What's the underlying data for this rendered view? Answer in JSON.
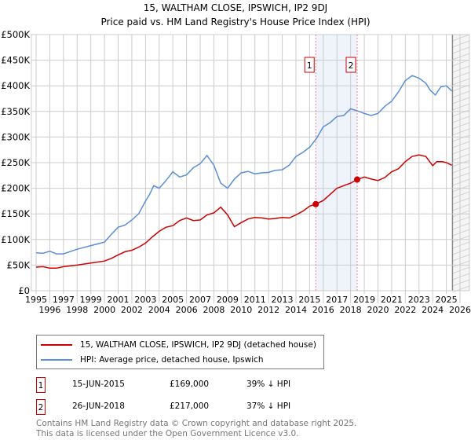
{
  "title": "15, WALTHAM CLOSE, IPSWICH, IP2 9DJ",
  "subtitle": "Price paid vs. HM Land Registry's House Price Index (HPI)",
  "colors": {
    "property": "#cc0000",
    "hpi": "#5b8fd4",
    "shade": "#eef3fc"
  },
  "chart_data": {
    "type": "line",
    "title": "15, WALTHAM CLOSE, IPSWICH, IP2 9DJ — Price paid vs. HM Land Registry's House Price Index (HPI)",
    "xlim": [
      1995,
      2026
    ],
    "ylim": [
      0,
      500000
    ],
    "x_ticks": [
      "1995",
      "1996",
      "1997",
      "1998",
      "1999",
      "2000",
      "2001",
      "2002",
      "2003",
      "2004",
      "2005",
      "2006",
      "2007",
      "2008",
      "2009",
      "2010",
      "2011",
      "2012",
      "2013",
      "2014",
      "2015",
      "2016",
      "2017",
      "2018",
      "2019",
      "2020",
      "2021",
      "2022",
      "2023",
      "2024",
      "2025",
      "2026"
    ],
    "y_ticks": [
      {
        "v": 0,
        "l": "£0"
      },
      {
        "v": 50000,
        "l": "£50K"
      },
      {
        "v": 100000,
        "l": "£100K"
      },
      {
        "v": 150000,
        "l": "£150K"
      },
      {
        "v": 200000,
        "l": "£200K"
      },
      {
        "v": 250000,
        "l": "£250K"
      },
      {
        "v": 300000,
        "l": "£300K"
      },
      {
        "v": 350000,
        "l": "£350K"
      },
      {
        "v": 400000,
        "l": "£400K"
      },
      {
        "v": 450000,
        "l": "£450K"
      },
      {
        "v": 500000,
        "l": "£500K"
      }
    ],
    "grid": true,
    "series": [
      {
        "name": "15, WALTHAM CLOSE, IPSWICH, IP2 9DJ (detached house)",
        "x": [
          1995,
          1995.5,
          1996,
          1996.5,
          1997,
          1998,
          1999,
          2000,
          2000.5,
          2001,
          2001.5,
          2002,
          2002.5,
          2003,
          2003.5,
          2004,
          2004.5,
          2005,
          2005.5,
          2006,
          2006.5,
          2007,
          2007.5,
          2008,
          2008.5,
          2009,
          2009.5,
          2010,
          2010.5,
          2011,
          2011.5,
          2012,
          2012.5,
          2013,
          2013.5,
          2014,
          2014.5,
          2015,
          2015.45,
          2016,
          2016.5,
          2017,
          2017.5,
          2018,
          2018.48,
          2019,
          2019.5,
          2020,
          2020.5,
          2021,
          2021.5,
          2022,
          2022.5,
          2023,
          2023.5,
          2024,
          2024.3,
          2024.7,
          2025,
          2025.4
        ],
        "y": [
          46000,
          47000,
          44000,
          44000,
          47000,
          50000,
          54000,
          58000,
          63000,
          70000,
          76000,
          79000,
          85000,
          93000,
          105000,
          116000,
          124000,
          127000,
          137000,
          142000,
          137000,
          138000,
          148000,
          152000,
          163000,
          148000,
          125000,
          133000,
          140000,
          143000,
          142000,
          140000,
          141000,
          143000,
          142000,
          148000,
          155000,
          165000,
          169000,
          176000,
          188000,
          200000,
          205000,
          210000,
          217000,
          222000,
          218000,
          215000,
          221000,
          232000,
          238000,
          252000,
          262000,
          265000,
          262000,
          244000,
          252000,
          252000,
          250000,
          245000
        ]
      },
      {
        "name": "HPI: Average price, detached house, Ipswich",
        "x": [
          1995,
          1995.5,
          1996,
          1996.5,
          1997,
          1998,
          1999,
          2000,
          2000.5,
          2001,
          2001.5,
          2002,
          2002.5,
          2003,
          2003.3,
          2003.6,
          2004,
          2004.5,
          2005,
          2005.5,
          2006,
          2006.5,
          2007,
          2007.5,
          2008,
          2008.5,
          2009,
          2009.5,
          2010,
          2010.5,
          2011,
          2011.5,
          2012,
          2012.5,
          2013,
          2013.5,
          2014,
          2014.5,
          2015,
          2015.5,
          2016,
          2016.5,
          2017,
          2017.5,
          2018,
          2018.5,
          2019,
          2019.5,
          2020,
          2020.5,
          2021,
          2021.5,
          2022,
          2022.5,
          2023,
          2023.5,
          2023.8,
          2024.2,
          2024.6,
          2025,
          2025.4
        ],
        "y": [
          74000,
          73000,
          77000,
          72000,
          72000,
          81000,
          88000,
          95000,
          110000,
          124000,
          128000,
          138000,
          150000,
          175000,
          188000,
          205000,
          200000,
          215000,
          232000,
          222000,
          226000,
          240000,
          248000,
          264000,
          245000,
          210000,
          200000,
          218000,
          230000,
          233000,
          228000,
          230000,
          231000,
          235000,
          236000,
          245000,
          262000,
          270000,
          280000,
          297000,
          320000,
          328000,
          340000,
          342000,
          355000,
          351000,
          346000,
          342000,
          346000,
          360000,
          370000,
          388000,
          410000,
          420000,
          415000,
          405000,
          392000,
          382000,
          398000,
          400000,
          390000
        ]
      }
    ],
    "sales": [
      {
        "id": "1",
        "x": 2015.45,
        "y": 169000
      },
      {
        "id": "2",
        "x": 2018.48,
        "y": 217000
      }
    ],
    "legend": "bottom (below plot)"
  },
  "legend": {
    "property": "15, WALTHAM CLOSE, IPSWICH, IP2 9DJ (detached house)",
    "hpi": "HPI: Average price, detached house, Ipswich"
  },
  "transactions": [
    {
      "id": "1",
      "date": "15-JUN-2015",
      "price": "£169,000",
      "hpi": "39% ↓ HPI"
    },
    {
      "id": "2",
      "date": "26-JUN-2018",
      "price": "£217,000",
      "hpi": "37% ↓ HPI"
    }
  ],
  "footer": {
    "line1": "Contains HM Land Registry data © Crown copyright and database right 2025.",
    "line2": "This data is licensed under the Open Government Licence v3.0."
  }
}
